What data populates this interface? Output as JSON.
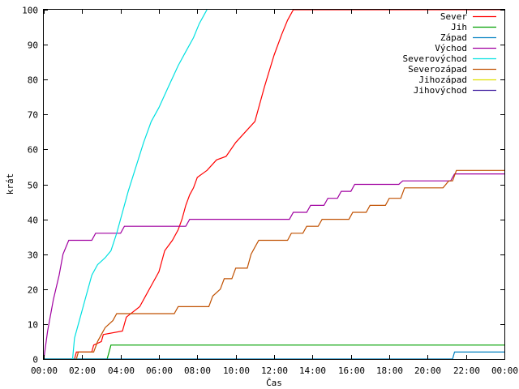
{
  "chart_data": {
    "type": "line",
    "xlabel": "Čas",
    "ylabel": "krát",
    "xlim": [
      0,
      24
    ],
    "ylim": [
      0,
      100
    ],
    "xticks": [
      {
        "value": 0,
        "label": "00:00"
      },
      {
        "value": 2,
        "label": "02:00"
      },
      {
        "value": 4,
        "label": "04:00"
      },
      {
        "value": 6,
        "label": "06:00"
      },
      {
        "value": 8,
        "label": "08:00"
      },
      {
        "value": 10,
        "label": "10:00"
      },
      {
        "value": 12,
        "label": "12:00"
      },
      {
        "value": 14,
        "label": "14:00"
      },
      {
        "value": 16,
        "label": "16:00"
      },
      {
        "value": 18,
        "label": "18:00"
      },
      {
        "value": 20,
        "label": "20:00"
      },
      {
        "value": 22,
        "label": "22:00"
      },
      {
        "value": 24,
        "label": "00:00"
      }
    ],
    "yticks": [
      {
        "value": 0,
        "label": "0"
      },
      {
        "value": 10,
        "label": "10"
      },
      {
        "value": 20,
        "label": "20"
      },
      {
        "value": 30,
        "label": "30"
      },
      {
        "value": 40,
        "label": "40"
      },
      {
        "value": 50,
        "label": "50"
      },
      {
        "value": 60,
        "label": "60"
      },
      {
        "value": 70,
        "label": "70"
      },
      {
        "value": 80,
        "label": "80"
      },
      {
        "value": 90,
        "label": "90"
      },
      {
        "value": 100,
        "label": "100"
      }
    ],
    "grid": false,
    "legend_position": "top-right",
    "series": [
      {
        "name": "Sever",
        "color": "#ff0000",
        "x": [
          1.6,
          1.7,
          2.5,
          2.6,
          3.0,
          3.1,
          4.1,
          4.3,
          5.0,
          5.3,
          5.6,
          6.0,
          6.3,
          6.7,
          7.0,
          7.2,
          7.4,
          7.6,
          7.8,
          8.0,
          8.5,
          9.0,
          9.5,
          10.0,
          10.5,
          11.0,
          11.5,
          12.0,
          12.4,
          12.7,
          13.0,
          24.0
        ],
        "y": [
          0,
          2,
          2,
          4,
          5,
          7,
          8,
          12,
          15,
          18,
          21,
          25,
          31,
          34,
          37,
          40,
          44,
          47,
          49,
          52,
          54,
          57,
          58,
          62,
          65,
          68,
          78,
          87,
          93,
          97,
          100,
          100
        ]
      },
      {
        "name": "Jih",
        "color": "#00a000",
        "x": [
          0,
          3.3,
          3.4,
          3.5,
          24.0
        ],
        "y": [
          0,
          0,
          2,
          4,
          4
        ]
      },
      {
        "name": "Západ",
        "color": "#0080c0",
        "x": [
          0,
          21.3,
          21.4,
          24.0
        ],
        "y": [
          0,
          0,
          2,
          2
        ]
      },
      {
        "name": "Východ",
        "color": "#a000a0",
        "x": [
          0,
          0.2,
          0.5,
          0.8,
          1.0,
          1.3,
          2.5,
          2.7,
          4.0,
          4.2,
          7.4,
          7.6,
          12.8,
          13.0,
          13.7,
          13.9,
          14.6,
          14.8,
          15.3,
          15.5,
          16.0,
          16.2,
          18.5,
          18.7,
          21.2,
          21.4,
          24.0
        ],
        "y": [
          0,
          8,
          17,
          24,
          30,
          34,
          34,
          36,
          36,
          38,
          38,
          40,
          40,
          42,
          42,
          44,
          44,
          46,
          46,
          48,
          48,
          50,
          50,
          51,
          51,
          53,
          53
        ]
      },
      {
        "name": "Severovýchod",
        "color": "#00e0e0",
        "x": [
          1.5,
          1.6,
          1.9,
          2.2,
          2.5,
          2.8,
          3.2,
          3.5,
          3.8,
          4.1,
          4.4,
          4.8,
          5.2,
          5.6,
          6.0,
          6.5,
          7.0,
          7.4,
          7.8,
          8.1,
          8.4,
          8.5
        ],
        "y": [
          0,
          6,
          12,
          18,
          24,
          27,
          29,
          31,
          36,
          42,
          48,
          55,
          62,
          68,
          72,
          78,
          84,
          88,
          92,
          96,
          99,
          100
        ]
      },
      {
        "name": "Severozápad",
        "color": "#c05000",
        "x": [
          1.7,
          1.8,
          2.6,
          2.8,
          3.0,
          3.2,
          3.6,
          3.8,
          6.8,
          7.0,
          8.6,
          8.8,
          9.2,
          9.4,
          9.8,
          10.0,
          10.6,
          10.8,
          11.0,
          11.2,
          12.7,
          12.9,
          13.5,
          13.7,
          14.3,
          14.5,
          15.9,
          16.1,
          16.8,
          17.0,
          17.8,
          18.0,
          18.6,
          18.8,
          20.8,
          21.1,
          21.3,
          21.5,
          24.0
        ],
        "y": [
          0,
          2,
          2,
          5,
          7,
          9,
          11,
          13,
          13,
          15,
          15,
          18,
          20,
          23,
          23,
          26,
          26,
          30,
          32,
          34,
          34,
          36,
          36,
          38,
          38,
          40,
          40,
          42,
          42,
          44,
          44,
          46,
          46,
          49,
          49,
          51,
          51,
          54,
          54
        ]
      },
      {
        "name": "Jihozápad",
        "color": "#e0e000",
        "x": [],
        "y": []
      },
      {
        "name": "Jihovýchod",
        "color": "#4020a0",
        "x": [],
        "y": []
      }
    ]
  }
}
